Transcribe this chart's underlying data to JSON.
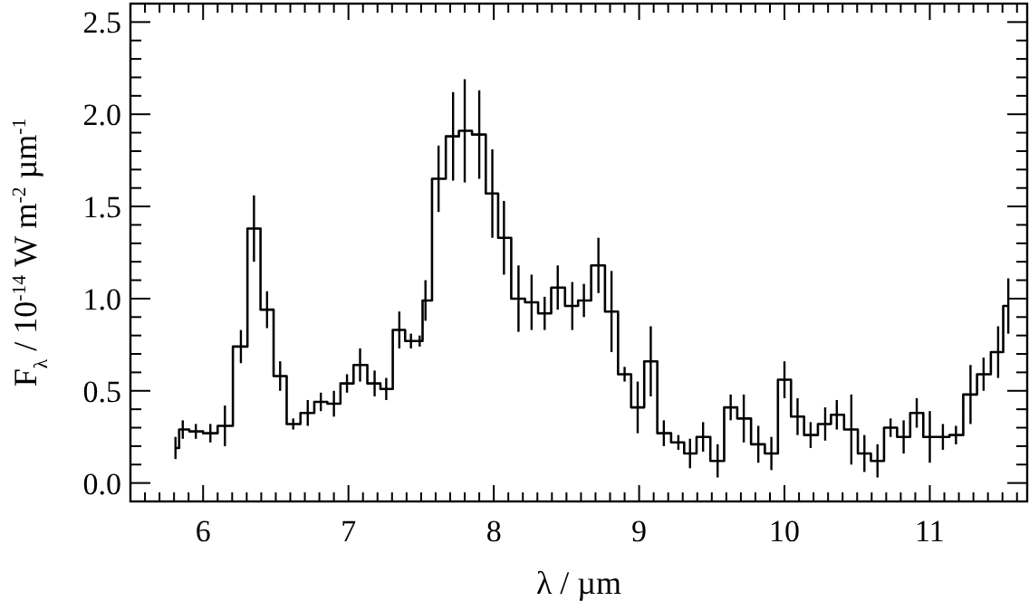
{
  "chart_data": {
    "type": "step",
    "xlabel": "λ / µm",
    "ylabel": "F$_{λ}$ / 10$^{-14}$ W m$^{-2}$ µm$^{-1}$",
    "x": [
      5.81,
      5.86,
      5.95,
      6.05,
      6.15,
      6.26,
      6.35,
      6.44,
      6.53,
      6.62,
      6.72,
      6.81,
      6.9,
      6.99,
      7.08,
      7.18,
      7.26,
      7.35,
      7.43,
      7.49,
      7.53,
      7.62,
      7.72,
      7.8,
      7.9,
      7.99,
      8.07,
      8.17,
      8.26,
      8.35,
      8.44,
      8.54,
      8.62,
      8.72,
      8.81,
      8.9,
      8.99,
      9.08,
      9.17,
      9.27,
      9.35,
      9.44,
      9.54,
      9.63,
      9.72,
      9.82,
      9.91,
      10.0,
      10.09,
      10.18,
      10.28,
      10.36,
      10.46,
      10.55,
      10.64,
      10.73,
      10.82,
      10.91,
      11.0,
      11.09,
      11.18,
      11.28,
      11.37,
      11.47,
      11.54
    ],
    "series": [
      {
        "color": "#000000",
        "values": [
          0.19,
          0.29,
          0.28,
          0.27,
          0.31,
          0.74,
          1.38,
          0.94,
          0.58,
          0.32,
          0.38,
          0.44,
          0.43,
          0.54,
          0.64,
          0.54,
          0.51,
          0.83,
          0.77,
          0.77,
          0.99,
          1.65,
          1.88,
          1.91,
          1.89,
          1.57,
          1.33,
          1.0,
          0.98,
          0.92,
          1.06,
          0.96,
          0.99,
          1.18,
          0.93,
          0.59,
          0.41,
          0.66,
          0.27,
          0.22,
          0.16,
          0.25,
          0.12,
          0.41,
          0.35,
          0.21,
          0.16,
          0.56,
          0.36,
          0.26,
          0.32,
          0.37,
          0.29,
          0.16,
          0.12,
          0.3,
          0.25,
          0.38,
          0.25,
          0.25,
          0.26,
          0.48,
          0.59,
          0.71,
          0.96
        ],
        "errors": [
          0.06,
          0.05,
          0.04,
          0.05,
          0.11,
          0.09,
          0.18,
          0.1,
          0.08,
          0.03,
          0.07,
          0.05,
          0.07,
          0.05,
          0.09,
          0.07,
          0.06,
          0.1,
          0.04,
          0.03,
          0.11,
          0.18,
          0.24,
          0.28,
          0.24,
          0.24,
          0.2,
          0.18,
          0.15,
          0.09,
          0.12,
          0.13,
          0.09,
          0.15,
          0.22,
          0.04,
          0.14,
          0.19,
          0.07,
          0.04,
          0.08,
          0.08,
          0.09,
          0.07,
          0.13,
          0.1,
          0.09,
          0.1,
          0.1,
          0.07,
          0.09,
          0.08,
          0.19,
          0.1,
          0.09,
          0.05,
          0.09,
          0.08,
          0.14,
          0.07,
          0.05,
          0.16,
          0.09,
          0.14,
          0.15
        ]
      }
    ],
    "xlim": [
      5.5,
      11.67
    ],
    "xticks": [
      6,
      7,
      8,
      9,
      10,
      11,
      {
        "value": 5.6,
        "label": null
      },
      {
        "value": 5.7,
        "label": null
      },
      {
        "value": 5.8,
        "label": null
      },
      {
        "value": 5.9,
        "label": null
      },
      {
        "value": 6.1,
        "label": null
      },
      {
        "value": 6.2,
        "label": null
      },
      {
        "value": 6.3,
        "label": null
      },
      {
        "value": 6.4,
        "label": null
      },
      {
        "value": 6.5,
        "label": null
      },
      {
        "value": 6.6,
        "label": null
      },
      {
        "value": 6.7,
        "label": null
      },
      {
        "value": 6.8,
        "label": null
      },
      {
        "value": 6.9,
        "label": null
      },
      {
        "value": 7.1,
        "label": null
      },
      {
        "value": 7.2,
        "label": null
      },
      {
        "value": 7.3,
        "label": null
      },
      {
        "value": 7.4,
        "label": null
      },
      {
        "value": 7.5,
        "label": null
      },
      {
        "value": 7.6,
        "label": null
      },
      {
        "value": 7.7,
        "label": null
      },
      {
        "value": 7.8,
        "label": null
      },
      {
        "value": 7.9,
        "label": null
      },
      {
        "value": 8.1,
        "label": null
      },
      {
        "value": 8.2,
        "label": null
      },
      {
        "value": 8.3,
        "label": null
      },
      {
        "value": 8.4,
        "label": null
      },
      {
        "value": 8.5,
        "label": null
      },
      {
        "value": 8.6,
        "label": null
      },
      {
        "value": 8.7,
        "label": null
      },
      {
        "value": 8.8,
        "label": null
      },
      {
        "value": 8.9,
        "label": null
      },
      {
        "value": 9.1,
        "label": null
      },
      {
        "value": 9.2,
        "label": null
      },
      {
        "value": 9.3,
        "label": null
      },
      {
        "value": 9.4,
        "label": null
      },
      {
        "value": 9.5,
        "label": null
      },
      {
        "value": 9.6,
        "label": null
      },
      {
        "value": 9.7,
        "label": null
      },
      {
        "value": 9.8,
        "label": null
      },
      {
        "value": 9.9,
        "label": null
      },
      {
        "value": 10.1,
        "label": null
      },
      {
        "value": 10.2,
        "label": null
      },
      {
        "value": 10.3,
        "label": null
      },
      {
        "value": 10.4,
        "label": null
      },
      {
        "value": 10.5,
        "label": null
      },
      {
        "value": 10.6,
        "label": null
      },
      {
        "value": 10.7,
        "label": null
      },
      {
        "value": 10.8,
        "label": null
      },
      {
        "value": 10.9,
        "label": null
      },
      {
        "value": 11.1,
        "label": null
      },
      {
        "value": 11.2,
        "label": null
      },
      {
        "value": 11.3,
        "label": null
      },
      {
        "value": 11.4,
        "label": null
      },
      {
        "value": 11.5,
        "label": null
      },
      {
        "value": 11.6,
        "label": null
      }
    ],
    "ylim": [
      -0.1,
      2.6
    ],
    "yticks": [
      {
        "value": 0,
        "label": "0.0"
      },
      {
        "value": 0.5,
        "label": "0.5"
      },
      {
        "value": 1,
        "label": "1.0"
      },
      {
        "value": 1.5,
        "label": "1.5"
      },
      {
        "value": 2,
        "label": "2.0"
      },
      {
        "value": 2.5,
        "label": "2.5"
      },
      {
        "value": 0.1,
        "label": null
      },
      {
        "value": 0.2,
        "label": null
      },
      {
        "value": 0.3,
        "label": null
      },
      {
        "value": 0.4,
        "label": null
      },
      {
        "value": 0.6,
        "label": null
      },
      {
        "value": 0.7,
        "label": null
      },
      {
        "value": 0.8,
        "label": null
      },
      {
        "value": 0.9,
        "label": null
      },
      {
        "value": 1.1,
        "label": null
      },
      {
        "value": 1.2,
        "label": null
      },
      {
        "value": 1.3,
        "label": null
      },
      {
        "value": 1.4,
        "label": null
      },
      {
        "value": 1.6,
        "label": null
      },
      {
        "value": 1.7,
        "label": null
      },
      {
        "value": 1.8,
        "label": null
      },
      {
        "value": 1.9,
        "label": null
      },
      {
        "value": 2.1,
        "label": null
      },
      {
        "value": 2.2,
        "label": null
      },
      {
        "value": 2.3,
        "label": null
      },
      {
        "value": 2.4,
        "label": null
      }
    ],
    "grid": false,
    "marker": "none",
    "line_style": "solid"
  }
}
